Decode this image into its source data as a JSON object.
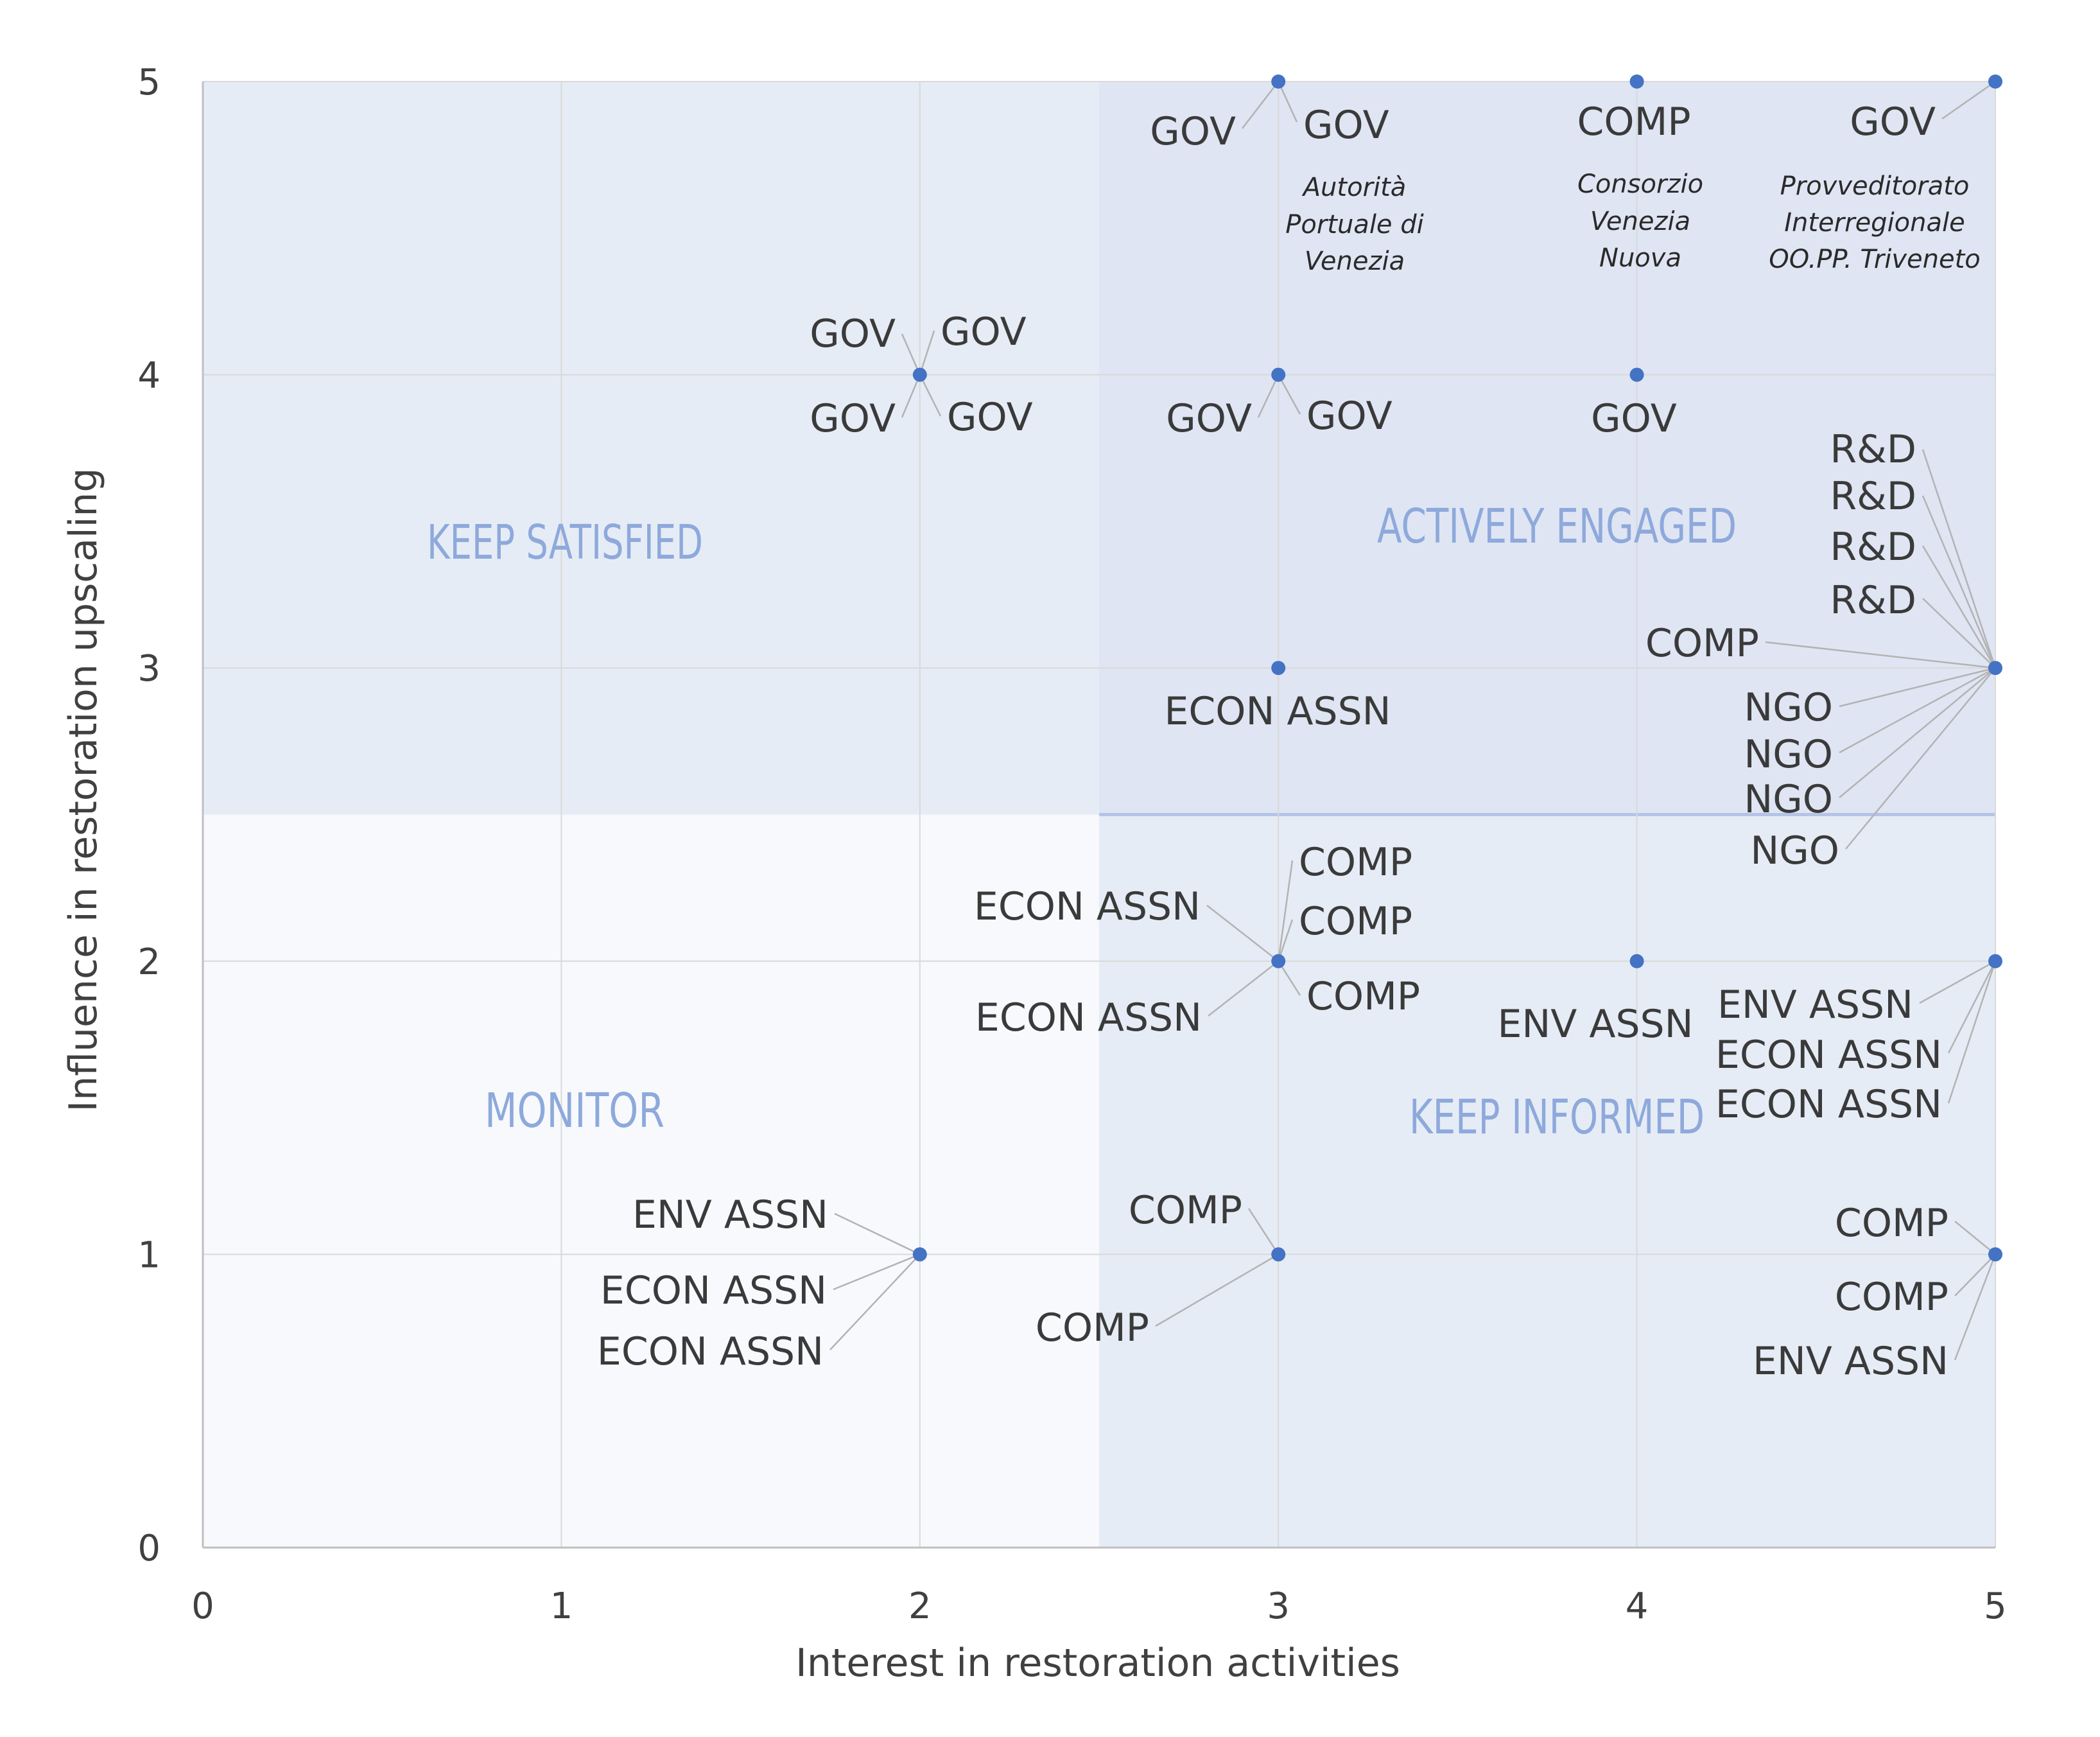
{
  "chart_data": {
    "type": "scatter",
    "title": "",
    "xlabel": "Interest in restoration activities",
    "ylabel": "Influence in restoration upscaling",
    "xlim": [
      0,
      5
    ],
    "ylim": [
      0,
      5
    ],
    "xticks": [
      "0",
      "1",
      "2",
      "3",
      "4",
      "5"
    ],
    "yticks": [
      "0",
      "1",
      "2",
      "3",
      "4",
      "5"
    ],
    "grid": true,
    "quadrants": [
      {
        "label": "KEEP SATISFIED",
        "x_range": [
          0,
          2.5
        ],
        "y_range": [
          2.5,
          5
        ],
        "color": "#e6ecf6"
      },
      {
        "label": "ACTIVELY ENGAGED",
        "x_range": [
          2.5,
          5
        ],
        "y_range": [
          2.5,
          5
        ],
        "color": "#dfe5f3"
      },
      {
        "label": "MONITOR",
        "x_range": [
          0,
          2.5
        ],
        "y_range": [
          0,
          2.5
        ],
        "color": "#f7f9fd"
      },
      {
        "label": "KEEP INFORMED",
        "x_range": [
          2.5,
          5
        ],
        "y_range": [
          0,
          2.5
        ],
        "color": "#e6ecf6"
      }
    ],
    "points": [
      {
        "x": 3,
        "y": 5,
        "labels": [
          "GOV",
          "GOV"
        ],
        "annotation": "Autorità Portuale di Venezia"
      },
      {
        "x": 4,
        "y": 5,
        "labels": [
          "COMP"
        ],
        "annotation": "Consorzio Venezia Nuova"
      },
      {
        "x": 5,
        "y": 5,
        "labels": [
          "GOV"
        ],
        "annotation": "Provveditorato Interregionale OO.PP. Triveneto"
      },
      {
        "x": 2,
        "y": 4,
        "labels": [
          "GOV",
          "GOV",
          "GOV",
          "GOV"
        ]
      },
      {
        "x": 3,
        "y": 4,
        "labels": [
          "GOV",
          "GOV"
        ]
      },
      {
        "x": 4,
        "y": 4,
        "labels": [
          "GOV"
        ]
      },
      {
        "x": 3,
        "y": 3,
        "labels": [
          "ECON ASSN"
        ]
      },
      {
        "x": 5,
        "y": 3,
        "labels": [
          "R&D",
          "R&D",
          "R&D",
          "R&D",
          "COMP",
          "NGO",
          "NGO",
          "NGO",
          "NGO"
        ]
      },
      {
        "x": 3,
        "y": 2,
        "labels": [
          "ECON ASSN",
          "ECON ASSN",
          "COMP",
          "COMP",
          "COMP"
        ]
      },
      {
        "x": 4,
        "y": 2,
        "labels": [
          "ENV ASSN"
        ]
      },
      {
        "x": 5,
        "y": 2,
        "labels": [
          "ENV ASSN",
          "ECON ASSN",
          "ECON ASSN"
        ]
      },
      {
        "x": 2,
        "y": 1,
        "labels": [
          "ENV ASSN",
          "ECON ASSN",
          "ECON ASSN"
        ]
      },
      {
        "x": 3,
        "y": 1,
        "labels": [
          "COMP",
          "COMP"
        ]
      },
      {
        "x": 5,
        "y": 1,
        "labels": [
          "COMP",
          "COMP",
          "ENV ASSN"
        ]
      }
    ],
    "marker_color": "#4472c4"
  }
}
